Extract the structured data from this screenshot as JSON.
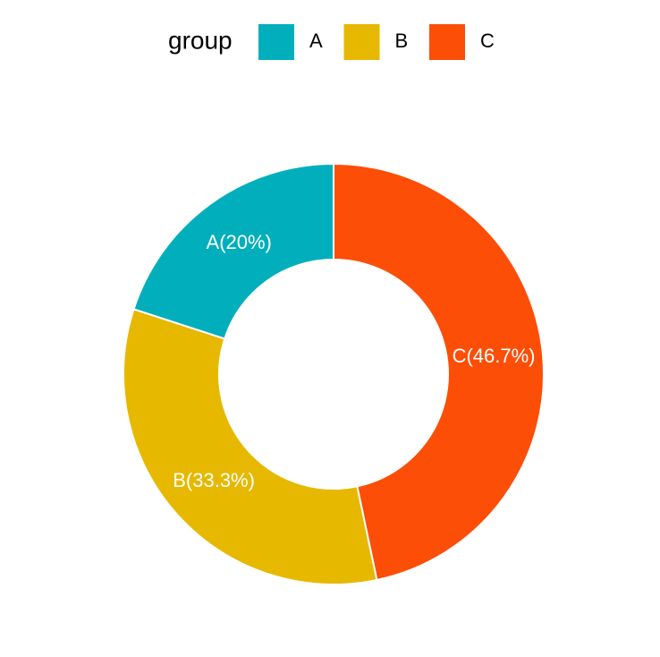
{
  "chart_data": {
    "type": "donut",
    "categories": [
      "A",
      "B",
      "C"
    ],
    "values": [
      20,
      33.3,
      46.7
    ],
    "value_labels": [
      "A(20%)",
      "B(33.3%)",
      "C(46.7%)"
    ],
    "colors": [
      "#00AFBB",
      "#E7B800",
      "#FC4E07"
    ],
    "legend_title": "group",
    "legend_position": "top"
  }
}
